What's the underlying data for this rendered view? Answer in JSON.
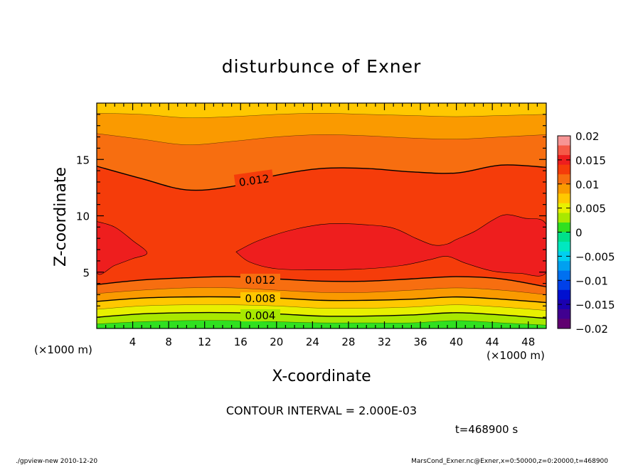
{
  "chart_data": {
    "type": "heatmap",
    "title": "disturbunce of Exner",
    "xlabel": "X-coordinate",
    "ylabel": "Z-coordinate",
    "x_unit": "(×1000 m)",
    "xlim": [
      0,
      50
    ],
    "ylim": [
      0,
      20
    ],
    "x_ticks": [
      4,
      8,
      12,
      16,
      20,
      24,
      28,
      32,
      36,
      40,
      44,
      48
    ],
    "y_ticks": [
      5,
      10,
      15
    ],
    "contour_interval_text": "CONTOUR INTERVAL = 2.000E-03",
    "time_text": "t=468900 s",
    "colorbar": {
      "ticks": [
        "0.02",
        "0.015",
        "0.01",
        "0.005",
        "0",
        "−0.005",
        "−0.01",
        "−0.015",
        "−0.02"
      ],
      "range": [
        -0.02,
        0.02
      ],
      "levels": [
        {
          "lo": 0.018,
          "hi": 0.02,
          "color": "#f79595"
        },
        {
          "lo": 0.016,
          "hi": 0.018,
          "color": "#f55a48"
        },
        {
          "lo": 0.014,
          "hi": 0.016,
          "color": "#ee1e1e"
        },
        {
          "lo": 0.012,
          "hi": 0.014,
          "color": "#f53c0a"
        },
        {
          "lo": 0.01,
          "hi": 0.012,
          "color": "#f76e10"
        },
        {
          "lo": 0.008,
          "hi": 0.01,
          "color": "#fa9a00"
        },
        {
          "lo": 0.006,
          "hi": 0.008,
          "color": "#ffc800"
        },
        {
          "lo": 0.004,
          "hi": 0.006,
          "color": "#e8f000"
        },
        {
          "lo": 0.002,
          "hi": 0.004,
          "color": "#a8e800"
        },
        {
          "lo": 0.0,
          "hi": 0.002,
          "color": "#30e020"
        },
        {
          "lo": -0.002,
          "hi": 0.0,
          "color": "#00e08a"
        },
        {
          "lo": -0.004,
          "hi": -0.002,
          "color": "#00e8c0"
        },
        {
          "lo": -0.006,
          "hi": -0.004,
          "color": "#00d0f0"
        },
        {
          "lo": -0.008,
          "hi": -0.006,
          "color": "#00a0f0"
        },
        {
          "lo": -0.01,
          "hi": -0.008,
          "color": "#0070f0"
        },
        {
          "lo": -0.012,
          "hi": -0.01,
          "color": "#0040e8"
        },
        {
          "lo": -0.014,
          "hi": -0.012,
          "color": "#0010d0"
        },
        {
          "lo": -0.016,
          "hi": -0.014,
          "color": "#1a00b0"
        },
        {
          "lo": -0.018,
          "hi": -0.016,
          "color": "#400090"
        },
        {
          "lo": -0.02,
          "hi": -0.018,
          "color": "#600070"
        }
      ]
    },
    "contour_labels": [
      "0.012",
      "0.012",
      "0.008",
      "0.004"
    ],
    "field_bands": [
      {
        "color": "#ffc800",
        "top_z": [
          20,
          20,
          20,
          20,
          20,
          20,
          20,
          20,
          20,
          20,
          20
        ]
      },
      {
        "color": "#fa9a00",
        "top_z": [
          19.1,
          19.0,
          18.7,
          18.8,
          19.0,
          19.1,
          19.0,
          18.9,
          18.8,
          18.9,
          19.0
        ]
      },
      {
        "color": "#f76e10",
        "top_z": [
          17.3,
          16.8,
          16.3,
          16.6,
          17.0,
          17.2,
          17.1,
          16.9,
          16.8,
          17.0,
          17.2
        ]
      },
      {
        "color": "#f53c0a",
        "top_z": [
          14.4,
          13.3,
          12.3,
          12.6,
          13.6,
          14.2,
          14.2,
          13.9,
          13.8,
          14.5,
          14.3
        ]
      },
      {
        "color": "#f76e10",
        "top_z": [
          3.9,
          4.3,
          4.5,
          4.6,
          4.4,
          4.2,
          4.2,
          4.4,
          4.6,
          4.4,
          3.7
        ]
      },
      {
        "color": "#fa9a00",
        "top_z": [
          3.1,
          3.4,
          3.6,
          3.6,
          3.4,
          3.2,
          3.2,
          3.4,
          3.6,
          3.4,
          3.0
        ]
      },
      {
        "color": "#ffc800",
        "top_z": [
          2.4,
          2.7,
          2.8,
          2.8,
          2.7,
          2.5,
          2.5,
          2.6,
          2.8,
          2.6,
          2.3
        ]
      },
      {
        "color": "#e8f000",
        "top_z": [
          1.7,
          2.0,
          2.1,
          2.1,
          2.0,
          1.8,
          1.8,
          1.9,
          2.1,
          1.9,
          1.6
        ]
      },
      {
        "color": "#a8e800",
        "top_z": [
          1.0,
          1.3,
          1.4,
          1.4,
          1.3,
          1.1,
          1.1,
          1.2,
          1.4,
          1.2,
          0.9
        ]
      },
      {
        "color": "#30e020",
        "top_z": [
          0.4,
          0.6,
          0.7,
          0.7,
          0.6,
          0.5,
          0.5,
          0.5,
          0.7,
          0.5,
          0.3
        ]
      }
    ],
    "contour_lines_z": [
      [
        14.4,
        13.3,
        12.3,
        12.6,
        13.6,
        14.2,
        14.2,
        13.9,
        13.8,
        14.5,
        14.3
      ],
      [
        3.9,
        4.3,
        4.5,
        4.6,
        4.4,
        4.2,
        4.2,
        4.4,
        4.6,
        4.4,
        3.7
      ],
      [
        2.4,
        2.7,
        2.8,
        2.8,
        2.7,
        2.5,
        2.5,
        2.6,
        2.8,
        2.6,
        2.3
      ],
      [
        1.0,
        1.3,
        1.4,
        1.4,
        1.3,
        1.1,
        1.1,
        1.2,
        1.4,
        1.2,
        0.9
      ]
    ],
    "core_regions": [
      {
        "color": "#ee1e1e",
        "outline_xz": [
          [
            0,
            9.5
          ],
          [
            2,
            9.0
          ],
          [
            4,
            7.8
          ],
          [
            5.6,
            6.7
          ],
          [
            4,
            6.2
          ],
          [
            2,
            5.6
          ],
          [
            0,
            5.0
          ]
        ]
      },
      {
        "color": "#ee1e1e",
        "outline_xz": [
          [
            15.5,
            6.8
          ],
          [
            18,
            7.8
          ],
          [
            22,
            8.8
          ],
          [
            26,
            9.3
          ],
          [
            30,
            9.2
          ],
          [
            33,
            8.9
          ],
          [
            35.5,
            8.0
          ],
          [
            37.5,
            7.4
          ],
          [
            39,
            7.5
          ],
          [
            40,
            7.9
          ],
          [
            42,
            8.6
          ],
          [
            44,
            9.6
          ],
          [
            45.5,
            10.1
          ],
          [
            47.5,
            9.8
          ],
          [
            50,
            9.2
          ],
          [
            50,
            5.0
          ],
          [
            47,
            4.9
          ],
          [
            44,
            5.1
          ],
          [
            41,
            5.8
          ],
          [
            39,
            6.4
          ],
          [
            37,
            6.1
          ],
          [
            34,
            5.6
          ],
          [
            30,
            5.3
          ],
          [
            25,
            5.2
          ],
          [
            20,
            5.3
          ],
          [
            17,
            5.9
          ]
        ]
      }
    ],
    "footer_left": "./gpview-new   2010-12-20",
    "footer_right": "MarsCond_Exner.nc@Exner,x=0:50000,z=0:20000,t=468900"
  }
}
